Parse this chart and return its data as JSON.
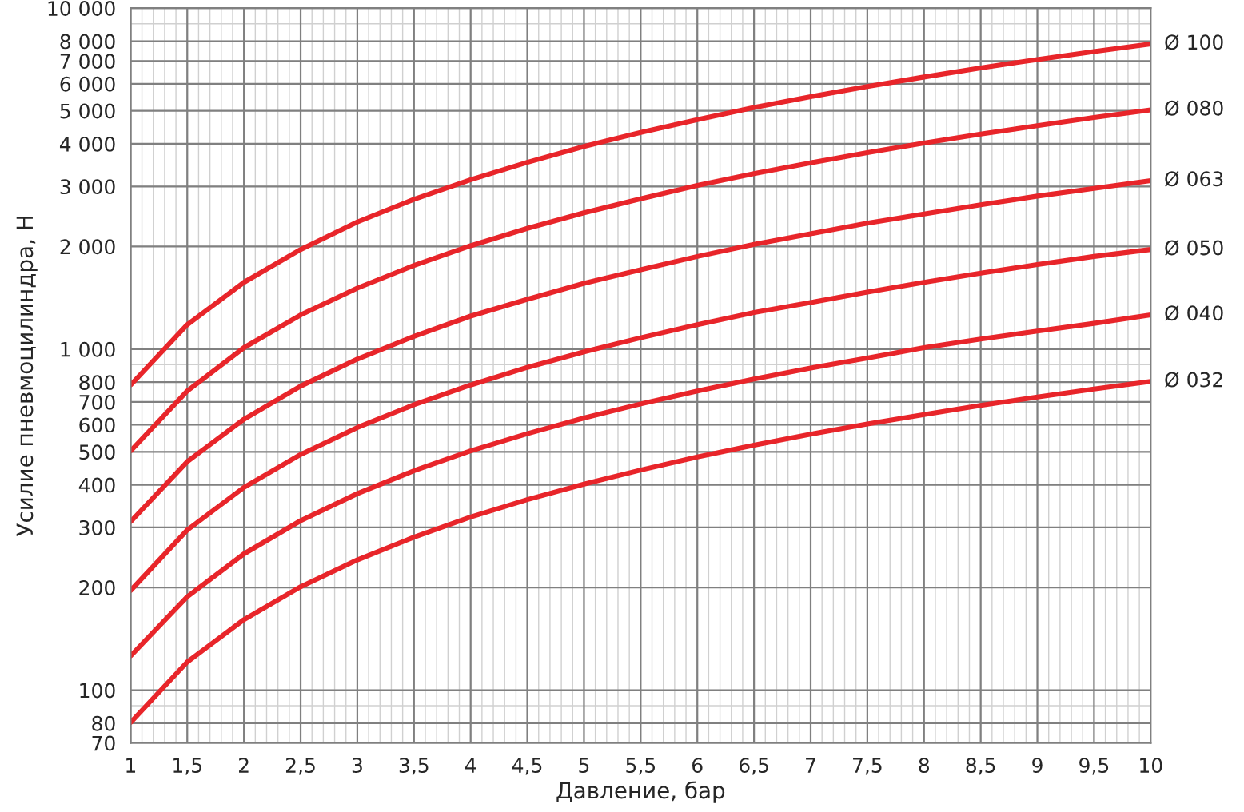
{
  "chart_data": {
    "type": "line",
    "xlabel": "Давление, бар",
    "ylabel": "Усилие пневмоцилиндра, Н",
    "x": [
      1,
      1.5,
      2,
      2.5,
      3,
      3.5,
      4,
      4.5,
      5,
      5.5,
      6,
      6.5,
      7,
      7.5,
      8,
      8.5,
      9,
      9.5,
      10
    ],
    "series": [
      {
        "name": "Ø 100",
        "color": "#e8252a",
        "values": [
          785,
          1180,
          1570,
          1960,
          2360,
          2750,
          3140,
          3530,
          3930,
          4320,
          4710,
          5110,
          5500,
          5890,
          6280,
          6680,
          7070,
          7460,
          7850
        ]
      },
      {
        "name": "Ø 080",
        "color": "#e8252a",
        "values": [
          503,
          754,
          1010,
          1260,
          1510,
          1760,
          2010,
          2260,
          2510,
          2760,
          3020,
          3270,
          3520,
          3770,
          4020,
          4270,
          4520,
          4780,
          5030
        ]
      },
      {
        "name": "Ø 063",
        "color": "#e8252a",
        "values": [
          312,
          468,
          623,
          779,
          935,
          1090,
          1250,
          1400,
          1560,
          1710,
          1870,
          2030,
          2180,
          2340,
          2490,
          2650,
          2810,
          2960,
          3120
        ]
      },
      {
        "name": "Ø 050",
        "color": "#e8252a",
        "values": [
          196,
          295,
          393,
          491,
          589,
          687,
          785,
          884,
          982,
          1080,
          1180,
          1280,
          1370,
          1470,
          1570,
          1670,
          1770,
          1870,
          1960
        ]
      },
      {
        "name": "Ø 040",
        "color": "#e8252a",
        "values": [
          126,
          188,
          251,
          314,
          377,
          440,
          503,
          565,
          628,
          691,
          754,
          817,
          880,
          942,
          1010,
          1070,
          1130,
          1190,
          1260
        ]
      },
      {
        "name": "Ø 032",
        "color": "#e8252a",
        "values": [
          80.4,
          121,
          161,
          201,
          241,
          281,
          322,
          362,
          402,
          442,
          483,
          523,
          563,
          603,
          643,
          684,
          724,
          764,
          804
        ]
      }
    ],
    "log": "y",
    "xlim": [
      1,
      10
    ],
    "ylim": [
      70,
      10000
    ],
    "xticks": [
      1,
      {
        "value": 1.5,
        "label": "1,5"
      },
      2,
      {
        "value": 2.5,
        "label": "2,5"
      },
      3,
      {
        "value": 3.5,
        "label": "3,5"
      },
      4,
      {
        "value": 4.5,
        "label": "4,5"
      },
      5,
      {
        "value": 5.5,
        "label": "5,5"
      },
      6,
      {
        "value": 6.5,
        "label": "6,5"
      },
      7,
      {
        "value": 7.5,
        "label": "7,5"
      },
      8,
      {
        "value": 8.5,
        "label": "8,5"
      },
      9,
      {
        "value": 9.5,
        "label": "9,5"
      },
      10
    ],
    "yticks": [
      70,
      80,
      100,
      200,
      300,
      400,
      500,
      600,
      700,
      800,
      {
        "value": 1000,
        "label": "1 000"
      },
      {
        "value": 2000,
        "label": "2 000"
      },
      {
        "value": 3000,
        "label": "3 000"
      },
      {
        "value": 4000,
        "label": "4 000"
      },
      {
        "value": 5000,
        "label": "5 000"
      },
      {
        "value": 6000,
        "label": "6 000"
      },
      {
        "value": 7000,
        "label": "7 000"
      },
      {
        "value": 8000,
        "label": "8 000"
      },
      {
        "value": 10000,
        "label": "10 000"
      }
    ],
    "grid": true,
    "legend": false,
    "marker": "none",
    "line_style": "solid"
  }
}
